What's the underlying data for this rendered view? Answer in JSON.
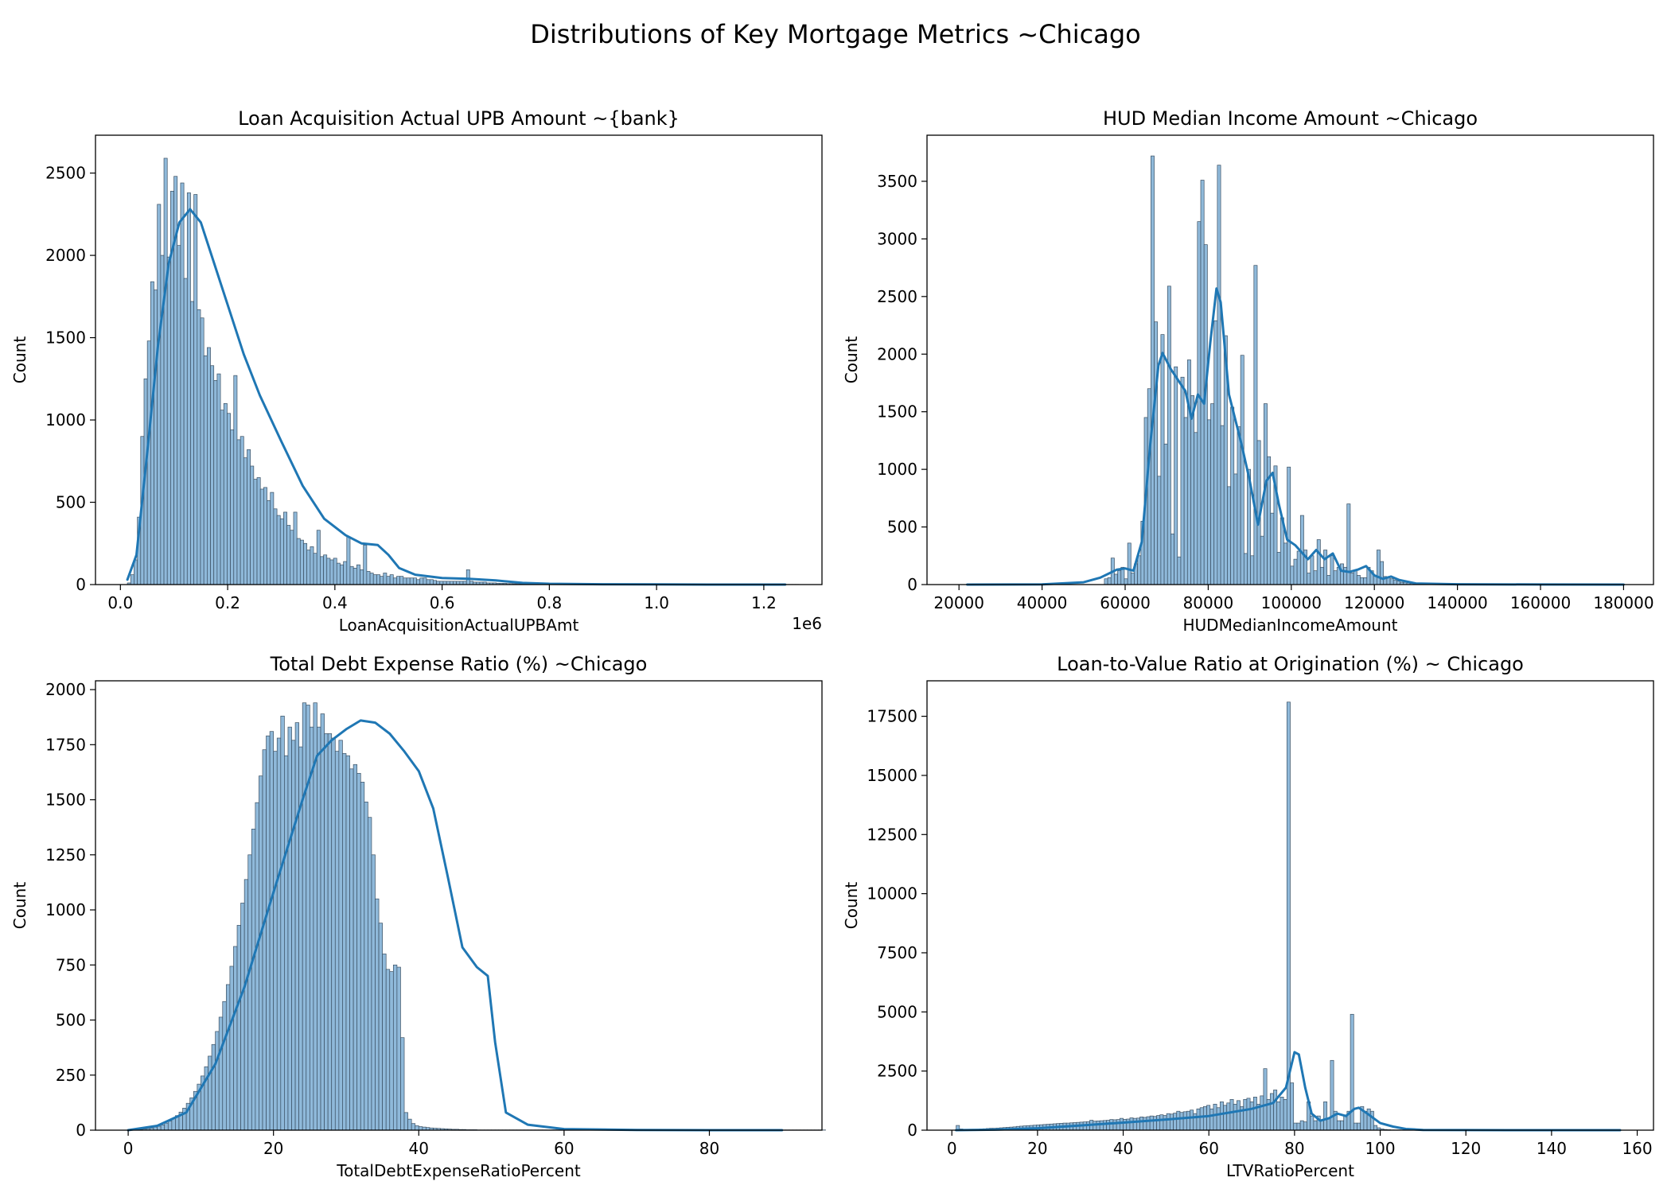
{
  "figure": {
    "title": "Distributions of Key Mortgage Metrics ~Chicago"
  },
  "colors": {
    "bar_fill": "#8fb9da",
    "bar_edge": "#3a4f62",
    "kde": "#1f77b4"
  },
  "chart_data": [
    {
      "type": "bar",
      "subtype": "histogram",
      "title": "Loan Acquisition Actual UPB Amount ~{bank}",
      "xlabel": "LoanAcquisitionActualUPBAmt",
      "ylabel": "Count",
      "offset_label": "1e6",
      "xlim": [
        -0.0465,
        1.3085
      ],
      "ylim": [
        0,
        2730
      ],
      "xticks": [
        0.0,
        0.2,
        0.4,
        0.6,
        0.8,
        1.0,
        1.2
      ],
      "xtick_labels": [
        "0.0",
        "0.2",
        "0.4",
        "0.6",
        "0.8",
        "1.0",
        "1.2"
      ],
      "yticks": [
        0,
        500,
        1000,
        1500,
        2000,
        2500
      ],
      "bins": {
        "start": 0.013,
        "width": 0.0062
      },
      "counts": [
        10,
        60,
        150,
        410,
        900,
        1250,
        1480,
        1840,
        1790,
        2310,
        2000,
        2590,
        1990,
        2390,
        2480,
        2060,
        2440,
        1860,
        2380,
        1720,
        2370,
        1670,
        1620,
        1390,
        1440,
        1330,
        1240,
        1280,
        1060,
        1100,
        1040,
        940,
        1270,
        880,
        900,
        770,
        820,
        720,
        640,
        650,
        580,
        590,
        510,
        560,
        460,
        420,
        400,
        440,
        360,
        330,
        440,
        280,
        270,
        250,
        210,
        230,
        190,
        330,
        170,
        180,
        160,
        150,
        160,
        130,
        120,
        140,
        290,
        110,
        100,
        120,
        90,
        240,
        80,
        70,
        60,
        60,
        50,
        70,
        50,
        60,
        40,
        50,
        50,
        40,
        40,
        40,
        40,
        30,
        40,
        40,
        30,
        30,
        25,
        20,
        20,
        20,
        20,
        20,
        20,
        20,
        20,
        20,
        90,
        20,
        15,
        15,
        15,
        15,
        10,
        10,
        10,
        8,
        8,
        8,
        6,
        6,
        5,
        5,
        4,
        4,
        4,
        3,
        3,
        3,
        3,
        3,
        2,
        2,
        2,
        2,
        2,
        2,
        2,
        1,
        1,
        1,
        1,
        1,
        1,
        1,
        1,
        1,
        1,
        1,
        1,
        1,
        1,
        1,
        1,
        1,
        1,
        1,
        1,
        1,
        1,
        1,
        1,
        1,
        1,
        1,
        1,
        1,
        1,
        1,
        1,
        1,
        1,
        1,
        1,
        1,
        1,
        1,
        1,
        1,
        1,
        1,
        1,
        1,
        1,
        1,
        1,
        1,
        1,
        1,
        1,
        1,
        1,
        1,
        1,
        1,
        1,
        1,
        1,
        1,
        1,
        1,
        1,
        1,
        1,
        1,
        1,
        1
      ],
      "kde": [
        [
          0.013,
          30
        ],
        [
          0.03,
          180
        ],
        [
          0.05,
          800
        ],
        [
          0.07,
          1450
        ],
        [
          0.09,
          1950
        ],
        [
          0.11,
          2200
        ],
        [
          0.13,
          2280
        ],
        [
          0.15,
          2200
        ],
        [
          0.17,
          2000
        ],
        [
          0.2,
          1700
        ],
        [
          0.23,
          1400
        ],
        [
          0.26,
          1150
        ],
        [
          0.3,
          870
        ],
        [
          0.34,
          600
        ],
        [
          0.38,
          400
        ],
        [
          0.42,
          300
        ],
        [
          0.45,
          250
        ],
        [
          0.48,
          240
        ],
        [
          0.5,
          180
        ],
        [
          0.52,
          100
        ],
        [
          0.55,
          60
        ],
        [
          0.6,
          40
        ],
        [
          0.65,
          35
        ],
        [
          0.7,
          25
        ],
        [
          0.75,
          10
        ],
        [
          0.8,
          5
        ],
        [
          0.9,
          2
        ],
        [
          1.0,
          1
        ],
        [
          1.1,
          0
        ],
        [
          1.24,
          0
        ]
      ]
    },
    {
      "type": "bar",
      "subtype": "histogram",
      "title": "HUD Median Income Amount ~Chicago",
      "xlabel": "HUDMedianIncomeAmount",
      "ylabel": "Count",
      "xlim": [
        12300,
        187200
      ],
      "ylim": [
        0,
        3900
      ],
      "xticks": [
        20000,
        40000,
        60000,
        80000,
        100000,
        120000,
        140000,
        160000,
        180000
      ],
      "xtick_labels": [
        "20000",
        "40000",
        "60000",
        "80000",
        "100000",
        "120000",
        "140000",
        "160000",
        "180000"
      ],
      "yticks": [
        0,
        500,
        1000,
        1500,
        2000,
        2500,
        3000,
        3500
      ],
      "bins": {
        "start": 55000,
        "width": 800
      },
      "counts": [
        50,
        60,
        230,
        90,
        120,
        150,
        50,
        360,
        100,
        180,
        250,
        550,
        1450,
        1700,
        3720,
        2280,
        940,
        2170,
        1220,
        2590,
        440,
        1890,
        240,
        1800,
        1450,
        1950,
        1640,
        1320,
        3150,
        3510,
        2950,
        1430,
        1570,
        2290,
        3640,
        1380,
        2160,
        850,
        1540,
        960,
        1370,
        1990,
        270,
        1000,
        250,
        2770,
        1250,
        420,
        1570,
        1110,
        620,
        1030,
        280,
        580,
        360,
        1020,
        160,
        220,
        290,
        600,
        300,
        100,
        250,
        120,
        390,
        150,
        300,
        80,
        250,
        120,
        150,
        180,
        150,
        700,
        100,
        120,
        80,
        60,
        60,
        150,
        120,
        80,
        300,
        200,
        70,
        60,
        50,
        40,
        30,
        20,
        20,
        15,
        10,
        10,
        10,
        10,
        5,
        5,
        5,
        5
      ],
      "kde": [
        [
          22000,
          0
        ],
        [
          40000,
          2
        ],
        [
          50000,
          20
        ],
        [
          54000,
          60
        ],
        [
          58000,
          130
        ],
        [
          60000,
          140
        ],
        [
          62000,
          120
        ],
        [
          64000,
          370
        ],
        [
          66000,
          1200
        ],
        [
          68000,
          1900
        ],
        [
          69000,
          2010
        ],
        [
          71000,
          1870
        ],
        [
          73000,
          1760
        ],
        [
          74500,
          1680
        ],
        [
          76000,
          1440
        ],
        [
          77500,
          1650
        ],
        [
          79000,
          1570
        ],
        [
          80500,
          2100
        ],
        [
          82000,
          2570
        ],
        [
          83000,
          2450
        ],
        [
          85000,
          1650
        ],
        [
          88000,
          1220
        ],
        [
          90000,
          900
        ],
        [
          92000,
          520
        ],
        [
          94000,
          900
        ],
        [
          95500,
          970
        ],
        [
          97000,
          700
        ],
        [
          99000,
          390
        ],
        [
          101000,
          340
        ],
        [
          104000,
          220
        ],
        [
          106000,
          300
        ],
        [
          108000,
          220
        ],
        [
          110000,
          270
        ],
        [
          112000,
          120
        ],
        [
          114000,
          110
        ],
        [
          116000,
          130
        ],
        [
          118000,
          160
        ],
        [
          120000,
          80
        ],
        [
          122000,
          50
        ],
        [
          124000,
          70
        ],
        [
          126000,
          40
        ],
        [
          130000,
          10
        ],
        [
          140000,
          3
        ],
        [
          160000,
          1
        ],
        [
          180000,
          0
        ]
      ]
    },
    {
      "type": "bar",
      "subtype": "histogram",
      "title": "Total Debt Expense Ratio (%) ~Chicago",
      "xlabel": "TotalDebtExpenseRatioPercent",
      "ylabel": "Count",
      "xlim": [
        -4.5,
        95.5
      ],
      "ylim": [
        0,
        2040
      ],
      "xticks": [
        0,
        20,
        40,
        60,
        80
      ],
      "xtick_labels": [
        "0",
        "20",
        "40",
        "60",
        "80"
      ],
      "yticks": [
        0,
        250,
        500,
        750,
        1000,
        1250,
        1500,
        1750,
        2000
      ],
      "bins": {
        "start": 0,
        "width": 0.5
      },
      "counts": [
        0,
        0,
        2,
        3,
        5,
        7,
        10,
        14,
        18,
        24,
        32,
        41,
        52,
        66,
        82,
        100,
        122,
        147,
        176,
        209,
        246,
        288,
        336,
        389,
        448,
        513,
        584,
        661,
        744,
        834,
        930,
        1031,
        1138,
        1250,
        1367,
        1487,
        1608,
        1727,
        1790,
        1810,
        1720,
        1780,
        1880,
        1700,
        1830,
        1770,
        1850,
        1740,
        1940,
        1930,
        1830,
        1940,
        1830,
        1890,
        1800,
        1800,
        1780,
        1720,
        1770,
        1710,
        1700,
        1640,
        1660,
        1620,
        1580,
        1490,
        1420,
        1250,
        1050,
        940,
        800,
        730,
        720,
        750,
        740,
        420,
        80,
        50,
        30,
        20,
        16,
        14,
        12,
        10,
        9,
        8,
        7,
        6,
        5,
        4,
        4,
        3,
        3,
        2,
        2,
        2,
        1,
        1,
        1,
        1,
        1,
        1,
        1,
        1,
        1,
        1,
        1,
        1,
        1,
        1,
        1,
        1,
        1,
        1,
        1,
        1,
        1,
        1,
        1,
        1,
        1,
        1,
        1,
        1,
        1,
        1,
        1,
        1,
        1,
        1,
        1,
        1,
        1,
        1,
        1,
        1,
        1,
        1,
        1,
        1,
        1,
        1,
        1,
        1,
        1,
        1,
        1,
        1,
        1,
        1,
        1,
        1,
        1,
        1,
        1,
        1,
        1,
        1,
        1,
        1,
        1,
        1,
        1,
        1,
        1,
        1,
        1,
        1,
        1,
        1,
        1,
        1,
        1,
        1,
        1,
        1,
        1,
        1,
        1,
        1,
        1,
        1,
        1,
        1,
        1,
        1,
        1,
        1,
        1,
        1,
        1,
        1
      ],
      "kde": [
        [
          0,
          0
        ],
        [
          4,
          20
        ],
        [
          8,
          80
        ],
        [
          12,
          300
        ],
        [
          16,
          650
        ],
        [
          20,
          1080
        ],
        [
          24,
          1500
        ],
        [
          26,
          1700
        ],
        [
          28,
          1770
        ],
        [
          30,
          1820
        ],
        [
          32,
          1860
        ],
        [
          34,
          1850
        ],
        [
          36,
          1800
        ],
        [
          38,
          1720
        ],
        [
          40,
          1630
        ],
        [
          42,
          1460
        ],
        [
          44,
          1150
        ],
        [
          46,
          830
        ],
        [
          48,
          740
        ],
        [
          49.5,
          700
        ],
        [
          50.5,
          400
        ],
        [
          52,
          80
        ],
        [
          55,
          25
        ],
        [
          60,
          5
        ],
        [
          70,
          1
        ],
        [
          80,
          0
        ],
        [
          90,
          0
        ]
      ]
    },
    {
      "type": "bar",
      "subtype": "histogram",
      "title": "Loan-to-Value Ratio at Origination (%) ~ Chicago",
      "xlabel": "LTVRatioPercent",
      "ylabel": "Count",
      "xlim": [
        -5.8,
        163.8
      ],
      "ylim": [
        0,
        19000
      ],
      "xticks": [
        0,
        20,
        40,
        60,
        80,
        100,
        120,
        140,
        160
      ],
      "xtick_labels": [
        "0",
        "20",
        "40",
        "60",
        "80",
        "100",
        "120",
        "140",
        "160"
      ],
      "yticks": [
        0,
        2500,
        5000,
        7500,
        10000,
        12500,
        15000,
        17500
      ],
      "bins": {
        "start": 1,
        "width": 0.78
      },
      "counts": [
        200,
        50,
        20,
        30,
        40,
        40,
        40,
        50,
        60,
        70,
        80,
        80,
        90,
        100,
        110,
        120,
        130,
        140,
        160,
        170,
        180,
        190,
        200,
        210,
        220,
        230,
        240,
        250,
        260,
        270,
        280,
        290,
        300,
        300,
        310,
        320,
        330,
        340,
        350,
        360,
        420,
        380,
        390,
        400,
        410,
        420,
        450,
        440,
        450,
        500,
        460,
        470,
        520,
        500,
        510,
        560,
        540,
        570,
        600,
        580,
        620,
        650,
        620,
        700,
        680,
        720,
        800,
        750,
        780,
        800,
        850,
        700,
        900,
        950,
        1000,
        1050,
        900,
        1100,
        950,
        1200,
        1050,
        1150,
        1300,
        1100,
        1250,
        1000,
        1300,
        1350,
        1200,
        1400,
        1100,
        1450,
        2600,
        1300,
        1550,
        1700,
        1200,
        1400,
        1300,
        18100,
        2000,
        300,
        300,
        400,
        350,
        1200,
        600,
        400,
        600,
        400,
        1200,
        500,
        2950,
        800,
        400,
        400,
        600,
        800,
        4900,
        300,
        300,
        1000,
        800,
        900,
        800,
        200,
        100,
        50,
        30,
        20,
        10,
        10,
        10,
        5,
        5,
        5,
        5,
        5,
        5,
        5,
        5,
        5,
        5,
        5,
        5,
        5,
        5,
        5,
        5,
        5,
        5,
        5,
        5,
        5,
        5,
        5,
        5,
        5,
        5,
        5,
        5,
        5,
        5,
        5,
        5,
        5,
        5,
        5,
        5,
        5,
        5,
        5,
        5,
        5,
        5,
        5,
        5,
        5,
        5,
        5,
        5,
        5,
        5,
        5,
        5,
        5,
        5,
        5,
        5,
        5,
        5,
        5,
        5,
        5,
        5,
        5,
        5,
        5,
        5,
        5
      ],
      "kde": [
        [
          1,
          0
        ],
        [
          10,
          20
        ],
        [
          20,
          80
        ],
        [
          30,
          200
        ],
        [
          40,
          320
        ],
        [
          50,
          450
        ],
        [
          60,
          600
        ],
        [
          70,
          900
        ],
        [
          75,
          1150
        ],
        [
          78,
          1800
        ],
        [
          80,
          3300
        ],
        [
          81,
          3200
        ],
        [
          82.5,
          1800
        ],
        [
          84,
          700
        ],
        [
          86,
          400
        ],
        [
          88,
          500
        ],
        [
          90,
          700
        ],
        [
          92,
          600
        ],
        [
          94,
          900
        ],
        [
          95,
          950
        ],
        [
          97,
          700
        ],
        [
          100,
          300
        ],
        [
          103,
          150
        ],
        [
          106,
          50
        ],
        [
          110,
          10
        ],
        [
          130,
          1
        ],
        [
          156,
          0
        ]
      ]
    }
  ]
}
